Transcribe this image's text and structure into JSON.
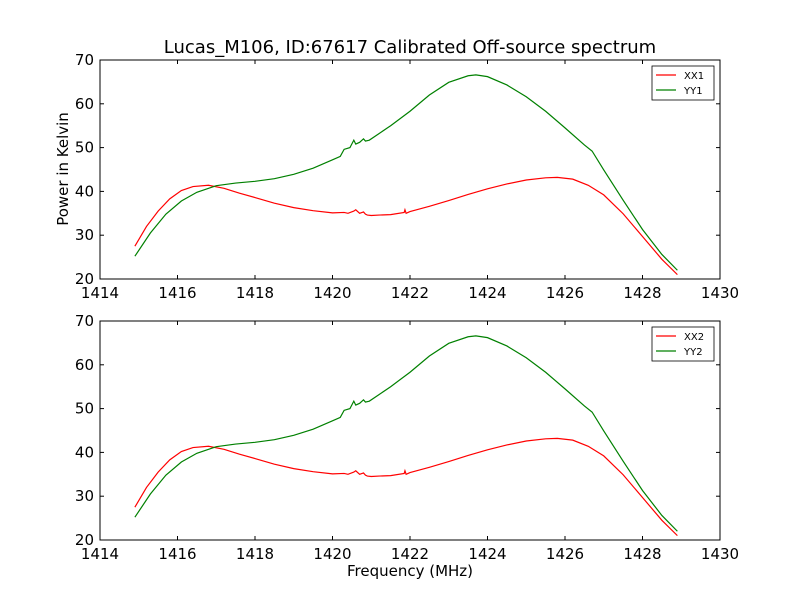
{
  "chart_data": [
    {
      "type": "line",
      "title": "Lucas_M106, ID:67617 Calibrated Off-source spectrum",
      "xlabel": "",
      "ylabel": "Power in Kelvin",
      "xlim": [
        1414,
        1430
      ],
      "ylim": [
        20,
        70
      ],
      "xticks": [
        1414,
        1416,
        1418,
        1420,
        1422,
        1424,
        1426,
        1428,
        1430
      ],
      "yticks": [
        20,
        30,
        40,
        50,
        60,
        70
      ],
      "legend": "top-right",
      "series": [
        {
          "name": "XX1",
          "color": "#ff0000",
          "x": [
            1414.9,
            1415.2,
            1415.5,
            1415.8,
            1416.1,
            1416.4,
            1416.8,
            1417.2,
            1417.6,
            1418.0,
            1418.5,
            1419.0,
            1419.5,
            1420.0,
            1420.3,
            1420.4,
            1420.55,
            1420.6,
            1420.7,
            1420.8,
            1420.85,
            1420.9,
            1421.0,
            1421.2,
            1421.5,
            1421.85,
            1421.87,
            1421.9,
            1422.0,
            1422.5,
            1423.0,
            1423.5,
            1424.0,
            1424.5,
            1425.0,
            1425.5,
            1425.8,
            1426.2,
            1426.6,
            1427.0,
            1427.5,
            1428.0,
            1428.5,
            1428.9
          ],
          "y": [
            27.5,
            32.0,
            35.5,
            38.3,
            40.2,
            41.1,
            41.4,
            40.7,
            39.6,
            38.6,
            37.3,
            36.3,
            35.6,
            35.1,
            35.2,
            35.0,
            35.5,
            35.8,
            35.0,
            35.3,
            34.8,
            34.6,
            34.5,
            34.6,
            34.7,
            35.2,
            35.8,
            35.0,
            35.4,
            36.6,
            37.9,
            39.3,
            40.6,
            41.7,
            42.6,
            43.1,
            43.2,
            42.8,
            41.4,
            39.2,
            34.9,
            29.7,
            24.5,
            21.0
          ]
        },
        {
          "name": "YY1",
          "color": "#008000",
          "x": [
            1414.9,
            1415.3,
            1415.7,
            1416.1,
            1416.5,
            1417.0,
            1417.5,
            1418.0,
            1418.5,
            1419.0,
            1419.5,
            1420.0,
            1420.2,
            1420.3,
            1420.45,
            1420.55,
            1420.6,
            1420.7,
            1420.8,
            1420.85,
            1420.95,
            1421.2,
            1421.5,
            1422.0,
            1422.5,
            1423.0,
            1423.5,
            1423.7,
            1424.0,
            1424.5,
            1425.0,
            1425.5,
            1426.0,
            1426.5,
            1426.7,
            1427.0,
            1427.5,
            1428.0,
            1428.5,
            1428.9
          ],
          "y": [
            25.2,
            30.5,
            34.8,
            37.8,
            39.8,
            41.3,
            41.9,
            42.3,
            42.9,
            43.9,
            45.3,
            47.2,
            48.0,
            49.6,
            50.0,
            51.7,
            50.8,
            51.2,
            52.0,
            51.5,
            51.7,
            53.2,
            55.0,
            58.3,
            62.0,
            64.9,
            66.4,
            66.6,
            66.2,
            64.3,
            61.6,
            58.3,
            54.5,
            50.6,
            49.2,
            44.9,
            38.0,
            31.3,
            25.6,
            22.0
          ]
        }
      ]
    },
    {
      "type": "line",
      "title": "",
      "xlabel": "Frequency (MHz)",
      "ylabel": "",
      "xlim": [
        1414,
        1430
      ],
      "ylim": [
        20,
        70
      ],
      "xticks": [
        1414,
        1416,
        1418,
        1420,
        1422,
        1424,
        1426,
        1428,
        1430
      ],
      "yticks": [
        20,
        30,
        40,
        50,
        60,
        70
      ],
      "legend": "top-right",
      "series": [
        {
          "name": "XX2",
          "color": "#ff0000",
          "x": [
            1414.9,
            1415.2,
            1415.5,
            1415.8,
            1416.1,
            1416.4,
            1416.8,
            1417.2,
            1417.6,
            1418.0,
            1418.5,
            1419.0,
            1419.5,
            1420.0,
            1420.3,
            1420.4,
            1420.55,
            1420.6,
            1420.7,
            1420.8,
            1420.85,
            1420.9,
            1421.0,
            1421.2,
            1421.5,
            1421.85,
            1421.87,
            1421.9,
            1422.0,
            1422.5,
            1423.0,
            1423.5,
            1424.0,
            1424.5,
            1425.0,
            1425.5,
            1425.8,
            1426.2,
            1426.6,
            1427.0,
            1427.5,
            1428.0,
            1428.5,
            1428.9
          ],
          "y": [
            27.5,
            32.0,
            35.5,
            38.3,
            40.2,
            41.1,
            41.4,
            40.7,
            39.6,
            38.6,
            37.3,
            36.3,
            35.6,
            35.1,
            35.2,
            35.0,
            35.5,
            35.8,
            35.0,
            35.3,
            34.8,
            34.6,
            34.5,
            34.6,
            34.7,
            35.2,
            35.8,
            35.0,
            35.4,
            36.6,
            37.9,
            39.3,
            40.6,
            41.7,
            42.6,
            43.1,
            43.2,
            42.8,
            41.4,
            39.2,
            34.9,
            29.7,
            24.5,
            21.0
          ]
        },
        {
          "name": "YY2",
          "color": "#008000",
          "x": [
            1414.9,
            1415.3,
            1415.7,
            1416.1,
            1416.5,
            1417.0,
            1417.5,
            1418.0,
            1418.5,
            1419.0,
            1419.5,
            1420.0,
            1420.2,
            1420.3,
            1420.45,
            1420.55,
            1420.6,
            1420.7,
            1420.8,
            1420.85,
            1420.95,
            1421.2,
            1421.5,
            1422.0,
            1422.5,
            1423.0,
            1423.5,
            1423.7,
            1424.0,
            1424.5,
            1425.0,
            1425.5,
            1426.0,
            1426.5,
            1426.7,
            1427.0,
            1427.5,
            1428.0,
            1428.5,
            1428.9
          ],
          "y": [
            25.2,
            30.5,
            34.8,
            37.8,
            39.8,
            41.3,
            41.9,
            42.3,
            42.9,
            43.9,
            45.3,
            47.2,
            48.0,
            49.6,
            50.0,
            51.7,
            50.8,
            51.2,
            52.0,
            51.5,
            51.7,
            53.2,
            55.0,
            58.3,
            62.0,
            64.9,
            66.4,
            66.6,
            66.2,
            64.3,
            61.6,
            58.3,
            54.5,
            50.6,
            49.2,
            44.9,
            38.0,
            31.3,
            25.6,
            22.0
          ]
        }
      ]
    }
  ]
}
